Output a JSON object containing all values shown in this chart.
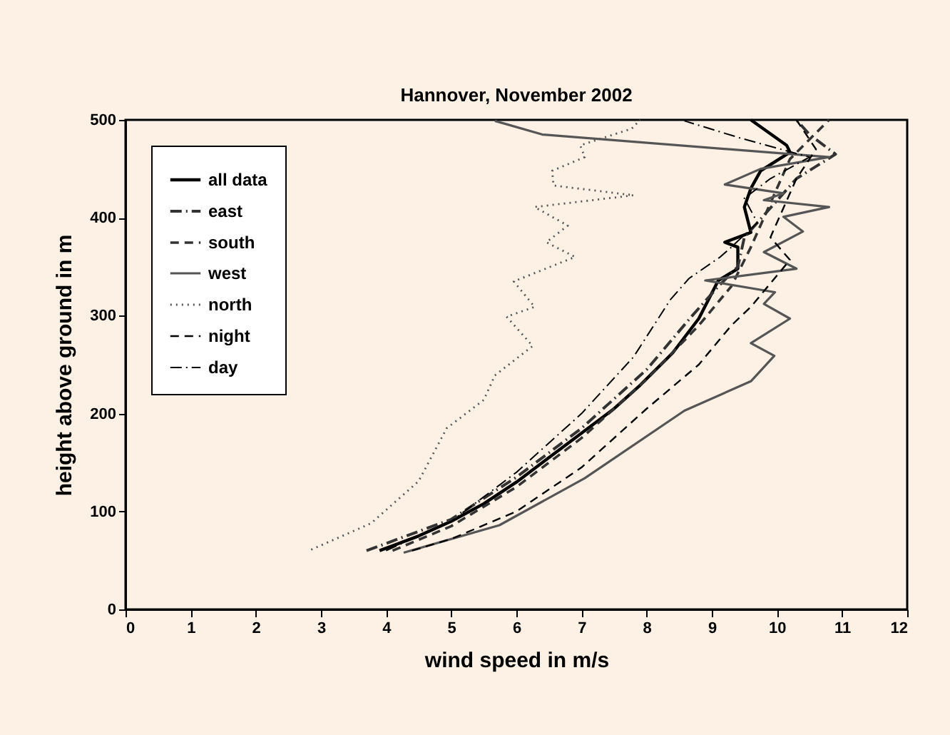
{
  "chart_data": {
    "type": "line",
    "title": "Hannover, November 2002",
    "xlabel": "wind speed in m/s",
    "ylabel": "height above ground in m",
    "xlim": [
      0,
      12
    ],
    "xticks": [
      0,
      1,
      2,
      3,
      4,
      5,
      6,
      7,
      8,
      9,
      10,
      11,
      12
    ],
    "ylim": [
      0,
      500
    ],
    "yticks": [
      0,
      100,
      200,
      300,
      400,
      500
    ],
    "legend": "top left",
    "grid": false,
    "series": [
      {
        "name": "all data",
        "color": "#000000",
        "line_style": "solid",
        "x": [
          3.9,
          4.5,
          5,
          5.5,
          6,
          6.5,
          7,
          7.5,
          7.9,
          8.4,
          8.8,
          9.1,
          9.4,
          9.4,
          9.2,
          9.6,
          9.5,
          9.6,
          9.75,
          10.2,
          10.15,
          9.6
        ],
        "values": [
          60,
          75,
          90,
          108,
          130,
          155,
          180,
          205,
          229,
          262,
          297,
          336,
          348,
          370,
          375,
          385,
          411,
          430,
          448,
          467,
          474,
          500
        ]
      },
      {
        "name": "east",
        "color": "#333333",
        "line_style": "dashdot",
        "x": [
          3.7,
          5,
          6,
          7,
          8,
          8.7,
          9.1,
          9.4,
          9.5,
          9.9,
          10.3,
          10.9,
          10.5,
          10.3
        ],
        "values": [
          60,
          92,
          135,
          185,
          245,
          300,
          330,
          350,
          380,
          410,
          440,
          465,
          485,
          500
        ]
      },
      {
        "name": "south",
        "color": "#333333",
        "line_style": "dashed",
        "x": [
          4.1,
          5,
          6,
          7,
          8,
          8.8,
          9.3,
          9.6,
          9.8,
          10,
          10.2,
          10.5,
          10.8
        ],
        "values": [
          60,
          85,
          125,
          175,
          235,
          290,
          330,
          370,
          400,
          430,
          460,
          480,
          500
        ]
      },
      {
        "name": "west",
        "color": "#555555",
        "line_style": "solid",
        "x": [
          4.27,
          5.74,
          7.05,
          8.58,
          9.6,
          9.96,
          9.6,
          10.2,
          9.8,
          9.97,
          8.9,
          10.3,
          9.8,
          10.4,
          10.1,
          10.8,
          9.8,
          10.1,
          9.2,
          9.75,
          10.8,
          6.4,
          5.67
        ],
        "values": [
          58,
          86,
          134,
          203,
          233,
          259,
          272,
          297,
          312,
          324,
          336,
          348,
          365,
          386,
          401,
          411,
          418,
          425,
          434,
          450,
          462,
          485,
          499
        ]
      },
      {
        "name": "north",
        "color": "#555555",
        "line_style": "dotted",
        "x": [
          2.85,
          3.77,
          4.5,
          4.93,
          5.5,
          5.67,
          6.25,
          5.85,
          6.28,
          5.96,
          6.9,
          6.46,
          6.79,
          6.28,
          7.8,
          6.57,
          6.55,
          7.05,
          6.98,
          7.77,
          7.9
        ],
        "values": [
          61,
          88,
          131,
          185,
          214,
          239,
          269,
          299,
          309,
          335,
          360,
          375,
          392,
          411,
          423,
          433,
          448,
          462,
          474,
          491,
          500
        ]
      },
      {
        "name": "night",
        "color": "#000000",
        "line_style": "dashed",
        "x": [
          4.4,
          5,
          6,
          7,
          8,
          8.8,
          9.3,
          9.6,
          10.2,
          9.9,
          10.1,
          10.3,
          10.6,
          10.3
        ],
        "values": [
          60,
          72,
          100,
          145,
          205,
          250,
          290,
          309,
          357,
          380,
          410,
          440,
          470,
          500
        ]
      },
      {
        "name": "day",
        "color": "#000000",
        "line_style": "dashdot",
        "x": [
          4,
          5,
          6,
          7,
          7.8,
          8.36,
          8.65,
          9.13,
          9.3,
          9.7,
          9.5,
          9.9,
          10.5,
          9.46,
          8.58
        ],
        "values": [
          60,
          90,
          140,
          200,
          258,
          316,
          338,
          360,
          370,
          395,
          420,
          440,
          462,
          481,
          499
        ]
      }
    ]
  }
}
